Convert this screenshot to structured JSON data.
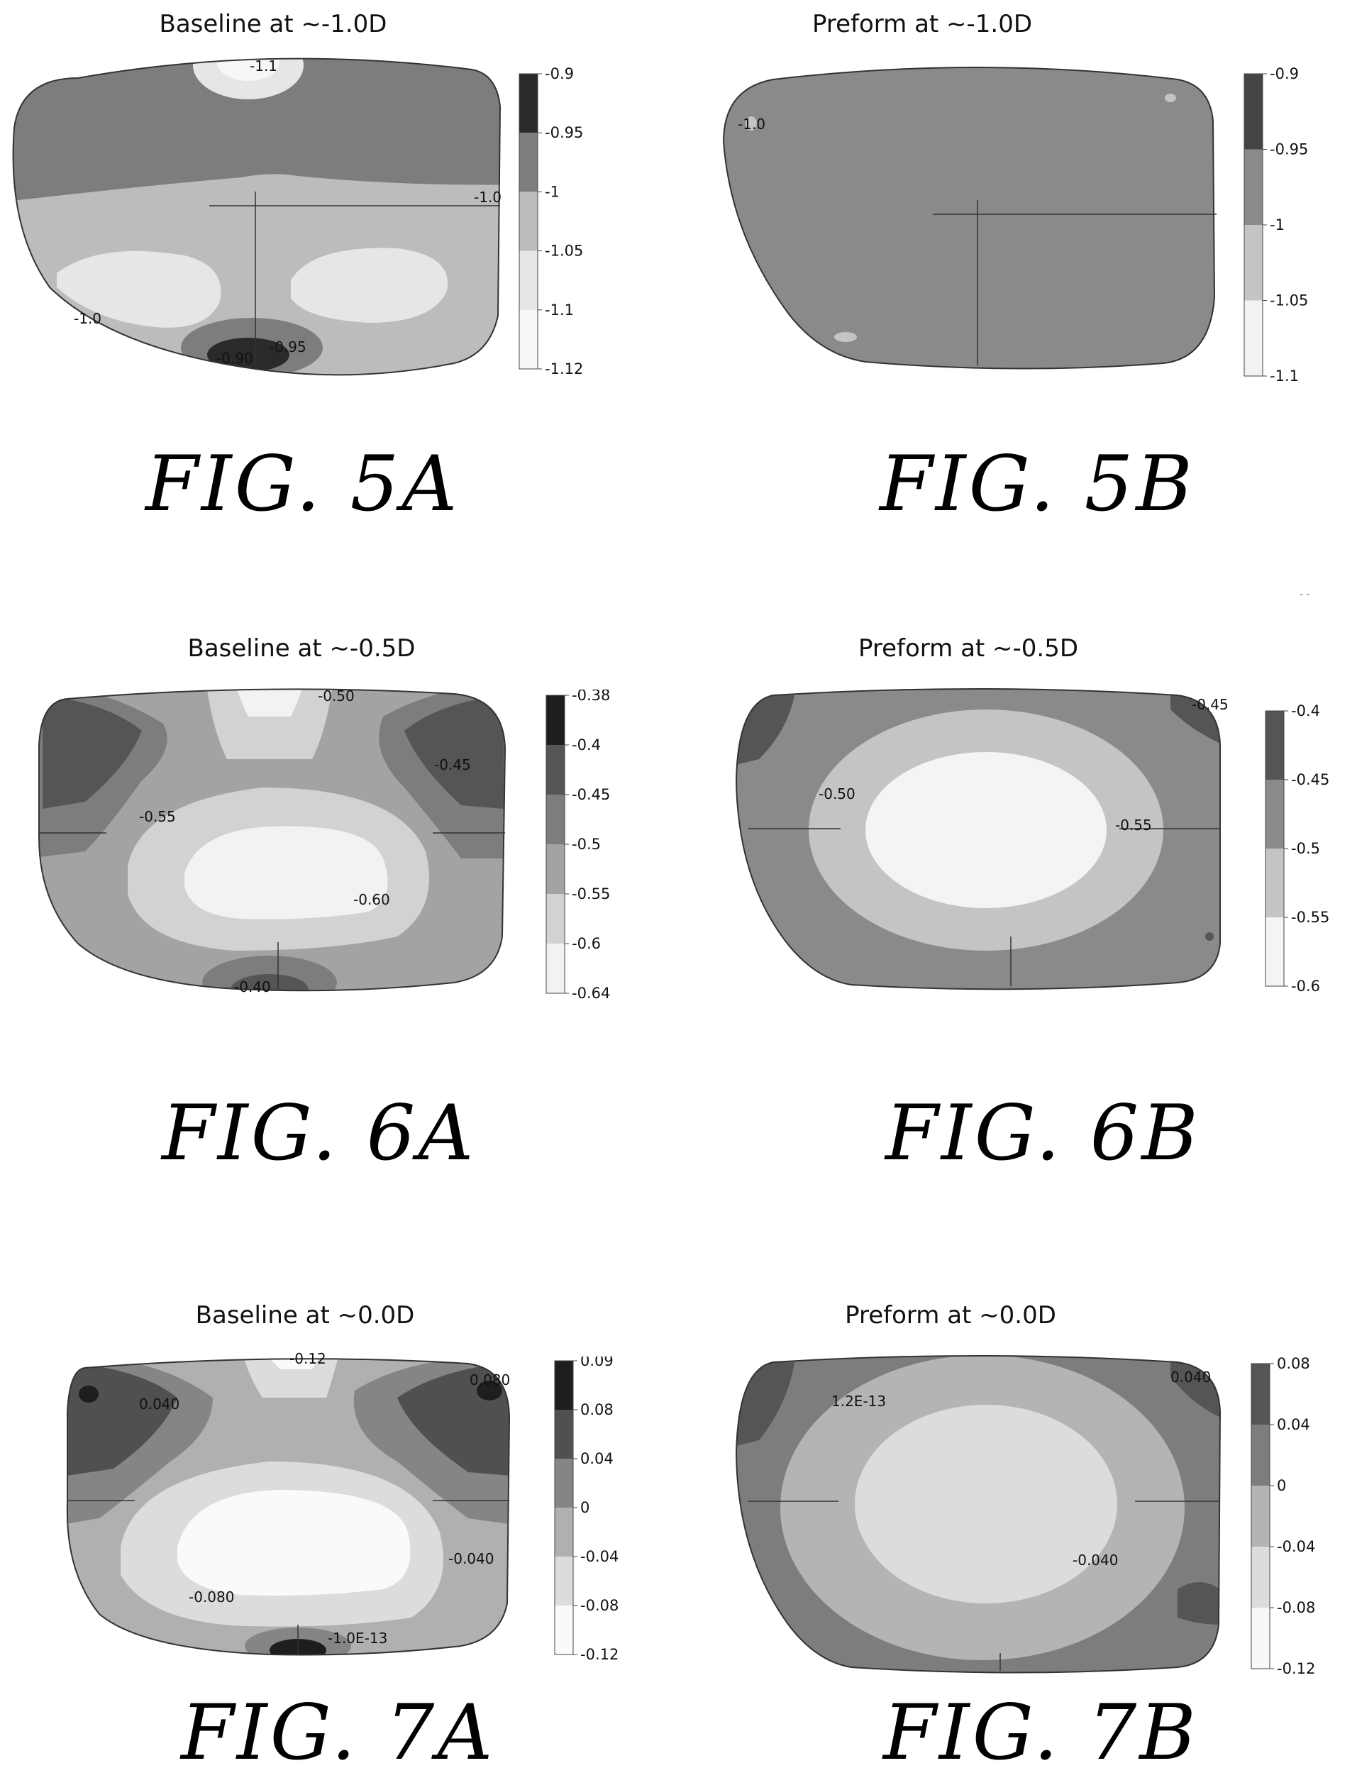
{
  "figures": [
    {
      "id": "5A",
      "title": "Baseline at ~-1.0D",
      "figure_label": "FIG. 5A",
      "colorbar": {
        "ticks": [
          "-0.9",
          "-0.95",
          "-1",
          "-1.05",
          "-1.1",
          "-1.12"
        ],
        "colors": [
          "#2a2a2a",
          "#7d7d7d",
          "#bcbcbc",
          "#e6e6e6",
          "#f7f7f7"
        ]
      },
      "contour_labels": [
        "-1.1",
        "-1.0",
        "-1.0",
        "-0.90",
        "-0.95"
      ]
    },
    {
      "id": "5B",
      "title": "Preform at ~-1.0D",
      "figure_label": "FIG. 5B",
      "colorbar": {
        "ticks": [
          "-0.9",
          "-0.95",
          "-1",
          "-1.05",
          "-1.1"
        ],
        "colors": [
          "#444444",
          "#8a8a8a",
          "#c4c4c4",
          "#f2f2f2"
        ]
      },
      "contour_labels": [
        "-1.0"
      ]
    },
    {
      "id": "6A",
      "title": "Baseline at ~-0.5D",
      "figure_label": "FIG. 6A",
      "colorbar": {
        "ticks": [
          "-0.38",
          "-0.4",
          "-0.45",
          "-0.5",
          "-0.55",
          "-0.6",
          "-0.64"
        ],
        "colors": [
          "#1e1e1e",
          "#555555",
          "#7d7d7d",
          "#a3a3a3",
          "#d2d2d2",
          "#f2f2f2"
        ]
      },
      "contour_labels": [
        "-0.50",
        "-0.45",
        "-0.55",
        "-0.60",
        "-0.40"
      ]
    },
    {
      "id": "6B",
      "title": "Preform at ~-0.5D",
      "figure_label": "FIG. 6B",
      "colorbar": {
        "ticks": [
          "-0.4",
          "-0.45",
          "-0.5",
          "-0.55",
          "-0.6"
        ],
        "colors": [
          "#555555",
          "#8a8a8a",
          "#c4c4c4",
          "#f4f4f4"
        ]
      },
      "contour_labels": [
        "-0.45",
        "-0.50",
        "-0.55"
      ]
    },
    {
      "id": "7A",
      "title": "Baseline at ~0.0D",
      "figure_label": "FIG. 7A",
      "colorbar": {
        "ticks": [
          "0.09",
          "0.08",
          "0.04",
          "0",
          "-0.04",
          "-0.08",
          "-0.12"
        ],
        "colors": [
          "#1e1e1e",
          "#505050",
          "#858585",
          "#b0b0b0",
          "#dcdcdc",
          "#fafafa"
        ]
      },
      "contour_labels": [
        "-0.12",
        "0.040",
        "0.080",
        "-0.040",
        "-0.080",
        "-1.0E-13"
      ]
    },
    {
      "id": "7B",
      "title": "Preform at ~0.0D",
      "figure_label": "FIG. 7B",
      "colorbar": {
        "ticks": [
          "0.08",
          "0.04",
          "0",
          "-0.04",
          "-0.08",
          "-0.12"
        ],
        "colors": [
          "#555555",
          "#7d7d7d",
          "#b4b4b4",
          "#dcdcdc",
          "#f8f8f8"
        ]
      },
      "contour_labels": [
        "0.040",
        "1.2E-13",
        "-0.040"
      ]
    }
  ]
}
